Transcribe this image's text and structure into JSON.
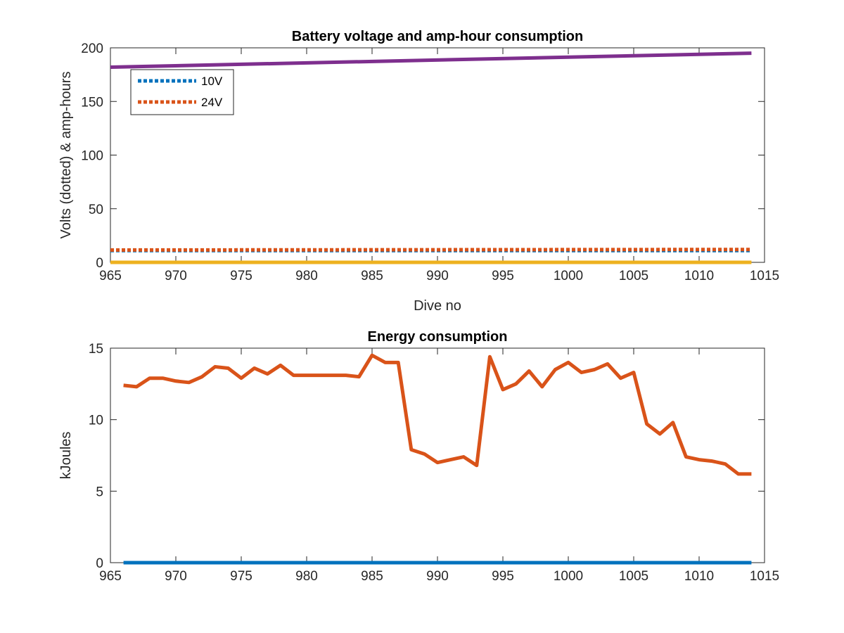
{
  "chart_data": [
    {
      "type": "line",
      "title": "Battery voltage and amp-hour consumption",
      "xlabel": "Dive no",
      "ylabel": "Volts (dotted) & amp-hours",
      "xlim": [
        965,
        1015
      ],
      "ylim": [
        0,
        200
      ],
      "xticks": [
        965,
        970,
        975,
        980,
        985,
        990,
        995,
        1000,
        1005,
        1010,
        1015
      ],
      "yticks": [
        0,
        50,
        100,
        150,
        200
      ],
      "grid": false,
      "legend": {
        "position": "top-left",
        "entries": [
          "10V",
          "24V"
        ]
      },
      "series": [
        {
          "name": "10V",
          "color": "#0072BD",
          "style": "dotted",
          "x": [
            965,
            1014
          ],
          "y": [
            11,
            11
          ]
        },
        {
          "name": "24V",
          "color": "#D95319",
          "style": "dotted",
          "x": [
            965,
            1014
          ],
          "y": [
            11.5,
            12
          ]
        },
        {
          "color": "#EDB120",
          "style": "solid",
          "x": [
            965,
            1014
          ],
          "y": [
            0,
            0
          ]
        },
        {
          "color": "#7E2F8E",
          "style": "solid",
          "x": [
            965,
            1014
          ],
          "y": [
            182,
            195
          ]
        }
      ]
    },
    {
      "type": "line",
      "title": "Energy consumption",
      "xlabel": "",
      "ylabel": "kJoules",
      "xlim": [
        965,
        1015
      ],
      "ylim": [
        0,
        15
      ],
      "xticks": [
        965,
        970,
        975,
        980,
        985,
        990,
        995,
        1000,
        1005,
        1010,
        1015
      ],
      "yticks": [
        0,
        5,
        10,
        15
      ],
      "grid": false,
      "series": [
        {
          "color": "#D95319",
          "style": "solid",
          "x": [
            966,
            967,
            968,
            969,
            970,
            971,
            972,
            973,
            974,
            975,
            976,
            977,
            978,
            979,
            980,
            981,
            982,
            983,
            984,
            985,
            986,
            987,
            988,
            989,
            990,
            991,
            992,
            993,
            994,
            995,
            996,
            997,
            998,
            999,
            1000,
            1001,
            1002,
            1003,
            1004,
            1005,
            1006,
            1007,
            1008,
            1009,
            1010,
            1011,
            1012,
            1013,
            1014
          ],
          "y": [
            12.4,
            12.3,
            12.9,
            12.9,
            12.7,
            12.6,
            13.0,
            13.7,
            13.6,
            12.9,
            13.6,
            13.2,
            13.8,
            13.1,
            13.1,
            13.1,
            13.1,
            13.1,
            13.0,
            14.5,
            14.0,
            14.0,
            7.9,
            7.6,
            7.0,
            7.2,
            7.4,
            6.8,
            14.4,
            12.1,
            12.5,
            13.4,
            12.3,
            13.5,
            14.0,
            13.3,
            13.5,
            13.9,
            12.9,
            13.3,
            9.7,
            9.0,
            9.8,
            7.4,
            7.2,
            7.1,
            6.9,
            6.2,
            6.2
          ]
        },
        {
          "color": "#0072BD",
          "style": "solid",
          "x": [
            966,
            1014
          ],
          "y": [
            0,
            0
          ]
        }
      ]
    }
  ]
}
